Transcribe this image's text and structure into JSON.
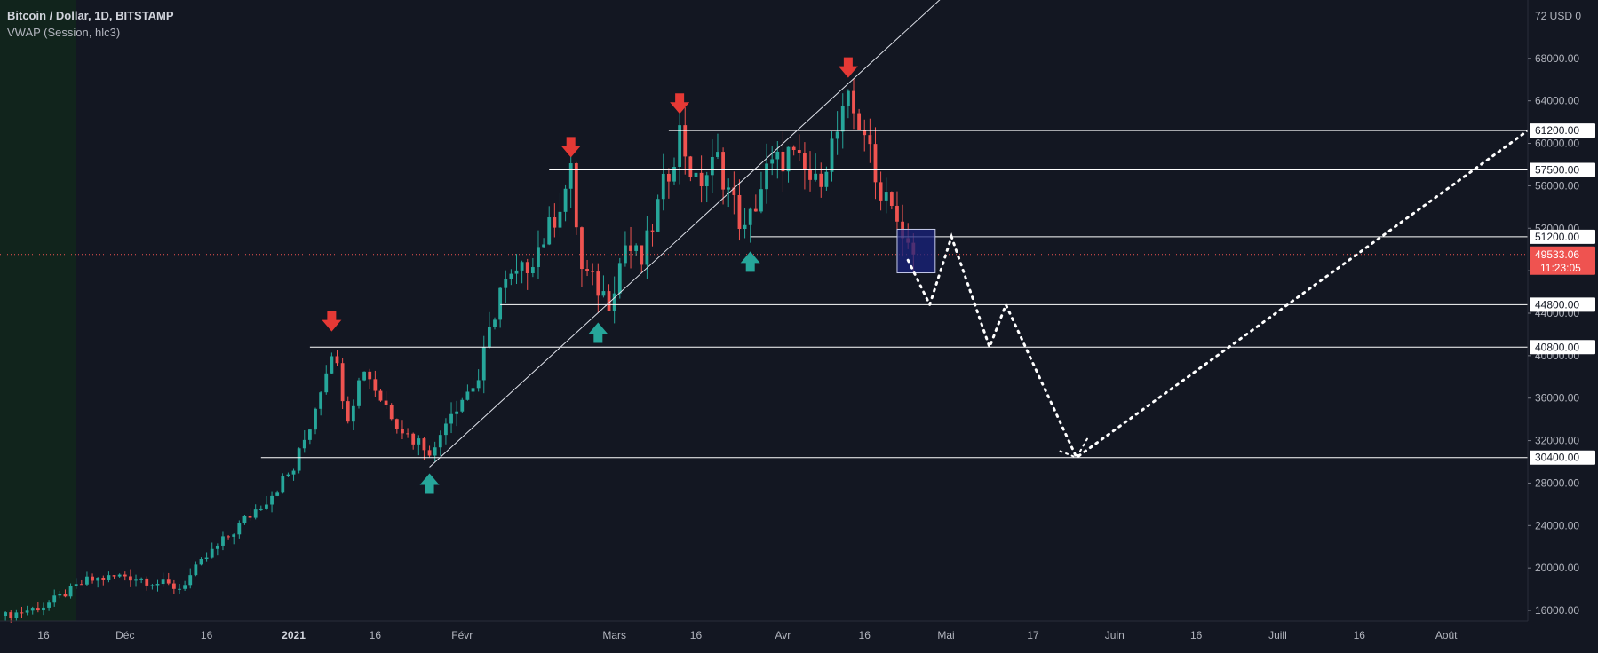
{
  "header": {
    "symbol_title": "Bitcoin / Dollar, 1D, BITSTAMP",
    "indicator": "VWAP (Session, hlc3)"
  },
  "colors": {
    "background": "#131722",
    "up": "#26a69a",
    "down": "#ef5350",
    "level_line": "#ffffff",
    "price_badge": "#ef5350",
    "session_bg": "#11241c",
    "marker_up": "#26a69a",
    "marker_down": "#e53935",
    "box_fill": "#1a237e"
  },
  "chart_data": {
    "type": "candlestick",
    "title": "Bitcoin / Dollar, 1D, BITSTAMP",
    "y_unit_label": "USD",
    "y_top_partial_label": "72",
    "ylim": [
      15000,
      73500
    ],
    "y_ticks": [
      16000,
      20000,
      24000,
      28000,
      32000,
      36000,
      40000,
      44000,
      48000,
      52000,
      56000,
      60000,
      64000,
      68000
    ],
    "x_range": [
      "2020-11-08",
      "2021-08-16"
    ],
    "x_ticks": [
      {
        "label": "16",
        "date": "2020-11-16",
        "bold": false
      },
      {
        "label": "Déc",
        "date": "2020-12-01",
        "bold": false
      },
      {
        "label": "16",
        "date": "2020-12-16",
        "bold": false
      },
      {
        "label": "2021",
        "date": "2021-01-01",
        "bold": true
      },
      {
        "label": "16",
        "date": "2021-01-16",
        "bold": false
      },
      {
        "label": "Févr",
        "date": "2021-02-01",
        "bold": false
      },
      {
        "label": "Mars",
        "date": "2021-03-01",
        "bold": false
      },
      {
        "label": "16",
        "date": "2021-03-16",
        "bold": false
      },
      {
        "label": "Avr",
        "date": "2021-04-01",
        "bold": false
      },
      {
        "label": "16",
        "date": "2021-04-16",
        "bold": false
      },
      {
        "label": "Mai",
        "date": "2021-05-01",
        "bold": false
      },
      {
        "label": "17",
        "date": "2021-05-17",
        "bold": false
      },
      {
        "label": "Juin",
        "date": "2021-06-01",
        "bold": false
      },
      {
        "label": "16",
        "date": "2021-06-16",
        "bold": false
      },
      {
        "label": "Juill",
        "date": "2021-07-01",
        "bold": false
      },
      {
        "label": "16",
        "date": "2021-07-16",
        "bold": false
      },
      {
        "label": "Août",
        "date": "2021-08-01",
        "bold": false
      }
    ],
    "session_highlight": {
      "from": "2020-11-08",
      "to": "2020-11-22"
    },
    "current_price": {
      "value": 49533.06,
      "label": "49533.06",
      "countdown": "11:23:05"
    },
    "price_path": [
      {
        "date": "2020-11-09",
        "price": 15500
      },
      {
        "date": "2020-11-16",
        "price": 16400
      },
      {
        "date": "2020-11-24",
        "price": 18800
      },
      {
        "date": "2020-12-01",
        "price": 19300
      },
      {
        "date": "2020-12-11",
        "price": 18100
      },
      {
        "date": "2020-12-16",
        "price": 21000
      },
      {
        "date": "2020-12-21",
        "price": 23500
      },
      {
        "date": "2020-12-27",
        "price": 26500
      },
      {
        "date": "2021-01-01",
        "price": 29300
      },
      {
        "date": "2021-01-04",
        "price": 33500
      },
      {
        "date": "2021-01-08",
        "price": 40800
      },
      {
        "date": "2021-01-11",
        "price": 34500
      },
      {
        "date": "2021-01-14",
        "price": 39000
      },
      {
        "date": "2021-01-17",
        "price": 36000
      },
      {
        "date": "2021-01-22",
        "price": 32500
      },
      {
        "date": "2021-01-27",
        "price": 31000
      },
      {
        "date": "2021-01-29",
        "price": 34300
      },
      {
        "date": "2021-02-04",
        "price": 37800
      },
      {
        "date": "2021-02-08",
        "price": 46300
      },
      {
        "date": "2021-02-12",
        "price": 47800
      },
      {
        "date": "2021-02-17",
        "price": 51900
      },
      {
        "date": "2021-02-21",
        "price": 57000
      },
      {
        "date": "2021-02-23",
        "price": 48000
      },
      {
        "date": "2021-02-28",
        "price": 45200
      },
      {
        "date": "2021-03-03",
        "price": 50500
      },
      {
        "date": "2021-03-06",
        "price": 48800
      },
      {
        "date": "2021-03-10",
        "price": 55800
      },
      {
        "date": "2021-03-13",
        "price": 61000
      },
      {
        "date": "2021-03-16",
        "price": 56000
      },
      {
        "date": "2021-03-20",
        "price": 58400
      },
      {
        "date": "2021-03-25",
        "price": 51500
      },
      {
        "date": "2021-03-29",
        "price": 57300
      },
      {
        "date": "2021-04-02",
        "price": 59000
      },
      {
        "date": "2021-04-07",
        "price": 56000
      },
      {
        "date": "2021-04-10",
        "price": 59800
      },
      {
        "date": "2021-04-13",
        "price": 63500
      },
      {
        "date": "2021-04-16",
        "price": 61300
      },
      {
        "date": "2021-04-18",
        "price": 56200
      },
      {
        "date": "2021-04-21",
        "price": 55000
      },
      {
        "date": "2021-04-23",
        "price": 50500
      },
      {
        "date": "2021-04-25",
        "price": 49533
      }
    ],
    "levels": [
      {
        "value": 61200,
        "label": "61200.00",
        "from": "2021-03-11"
      },
      {
        "value": 57500,
        "label": "57500.00",
        "from": "2021-02-17"
      },
      {
        "value": 51200,
        "label": "51200.00",
        "from": "2021-03-26"
      },
      {
        "value": 44800,
        "label": "44800.00",
        "from": "2021-02-08"
      },
      {
        "value": 40800,
        "label": "40800.00",
        "from": "2021-01-04"
      },
      {
        "value": 30400,
        "label": "30400.00",
        "from": "2020-12-26"
      }
    ],
    "trendline": [
      {
        "date": "2021-01-26",
        "price": 29500
      },
      {
        "date": "2021-05-03",
        "price": 75000
      }
    ],
    "projection_path": [
      {
        "date": "2021-04-24",
        "price": 49000
      },
      {
        "date": "2021-04-28",
        "price": 44800
      },
      {
        "date": "2021-05-02",
        "price": 51200
      },
      {
        "date": "2021-05-09",
        "price": 40800
      },
      {
        "date": "2021-05-12",
        "price": 44800
      },
      {
        "date": "2021-05-25",
        "price": 30400
      },
      {
        "date": "2021-08-16",
        "price": 61200
      }
    ],
    "projection_inset": [
      {
        "date": "2021-05-22",
        "price": 31000
      },
      {
        "date": "2021-05-25",
        "price": 30400
      },
      {
        "date": "2021-05-27",
        "price": 32200
      }
    ],
    "highlight_box": {
      "from": "2021-04-22",
      "to": "2021-04-29",
      "top": 51900,
      "bottom": 47800
    },
    "markers": [
      {
        "type": "down",
        "date": "2021-01-08",
        "price": 43200
      },
      {
        "type": "down",
        "date": "2021-02-21",
        "price": 59600
      },
      {
        "type": "down",
        "date": "2021-03-13",
        "price": 63700
      },
      {
        "type": "down",
        "date": "2021-04-13",
        "price": 67100
      },
      {
        "type": "up",
        "date": "2021-01-26",
        "price": 28000
      },
      {
        "type": "up",
        "date": "2021-02-26",
        "price": 42200
      },
      {
        "type": "up",
        "date": "2021-03-26",
        "price": 48900
      }
    ]
  }
}
